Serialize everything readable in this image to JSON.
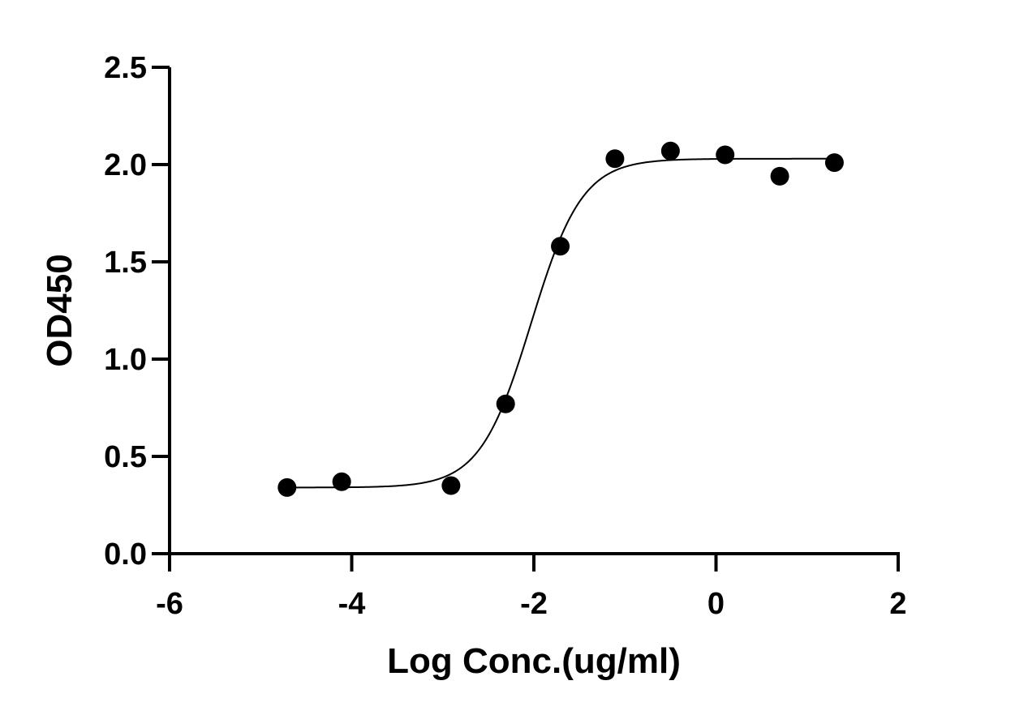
{
  "chart_data": {
    "type": "scatter",
    "title": "",
    "xlabel": "Log Conc.(ug/ml)",
    "ylabel": "OD450",
    "xlim": [
      -6,
      2
    ],
    "ylim": [
      0,
      2.5
    ],
    "xticks": [
      -6,
      -4,
      -2,
      0,
      2
    ],
    "xtick_labels": [
      "-6",
      "-4",
      "-2",
      "0",
      "2"
    ],
    "yticks": [
      0,
      0.5,
      1.0,
      1.5,
      2.0,
      2.5
    ],
    "ytick_labels": [
      "0.0",
      "0.5",
      "1.0",
      "1.5",
      "2.0",
      "2.5"
    ],
    "grid": false,
    "series": [
      {
        "points": [
          {
            "x": -4.71,
            "y": 0.34
          },
          {
            "x": -4.11,
            "y": 0.37
          },
          {
            "x": -2.91,
            "y": 0.35
          },
          {
            "x": -2.31,
            "y": 0.77
          },
          {
            "x": -1.71,
            "y": 1.58
          },
          {
            "x": -1.11,
            "y": 2.03
          },
          {
            "x": -0.5,
            "y": 2.07
          },
          {
            "x": 0.1,
            "y": 2.05
          },
          {
            "x": 0.7,
            "y": 1.94
          },
          {
            "x": 1.3,
            "y": 2.01
          }
        ],
        "color": "#000000"
      }
    ],
    "fit_curve": {
      "model": "four-parameter logistic",
      "bottom": 0.34,
      "top": 2.03,
      "logEC50": -2.03,
      "hill_slope": 1.55,
      "x_range": [
        -4.71,
        1.3
      ],
      "color": "#000000"
    }
  }
}
